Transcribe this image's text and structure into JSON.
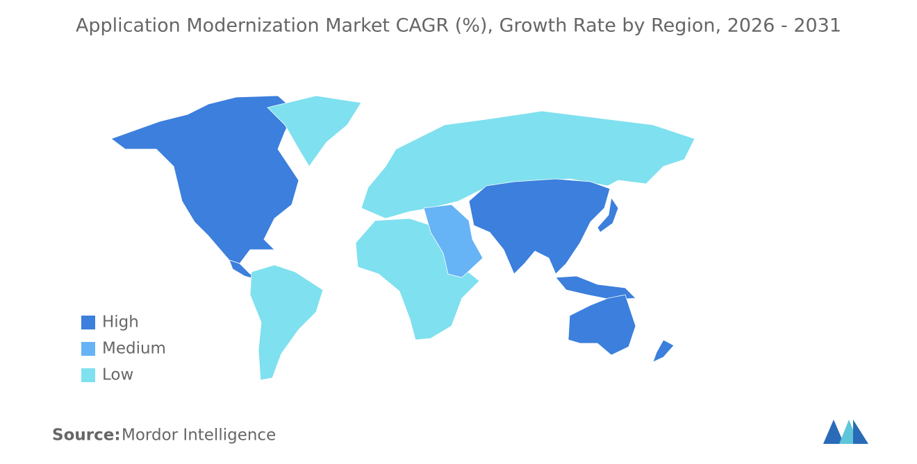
{
  "title": "Application Modernization Market  CAGR (%), Growth Rate by Region, 2026 - 2031",
  "legend": [
    {
      "name": "High",
      "color": "#3c7fdc"
    },
    {
      "name": "Medium",
      "color": "#66b3f5"
    },
    {
      "name": "Low",
      "color": "#7fe0ef"
    }
  ],
  "source": {
    "label": "Source:",
    "text": "Mordor Intelligence"
  }
}
